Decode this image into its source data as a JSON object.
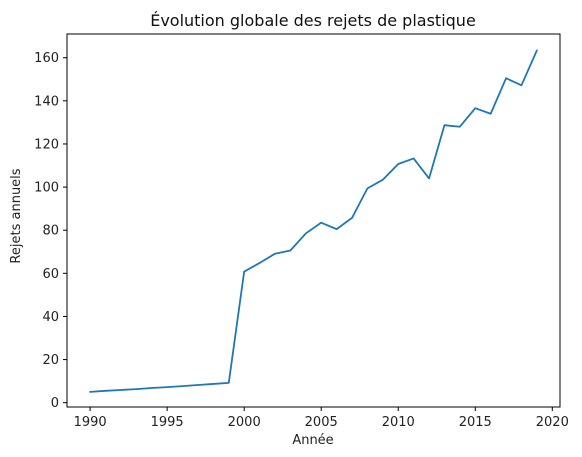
{
  "chart_data": {
    "type": "line",
    "title": "Évolution globale des rejets de plastique",
    "xlabel": "Année",
    "ylabel": "Rejets annuels",
    "xlim": [
      1988.5,
      2020.5
    ],
    "ylim": [
      -2,
      171
    ],
    "xticks": [
      1990,
      1995,
      2000,
      2005,
      2010,
      2015,
      2020
    ],
    "yticks": [
      0,
      20,
      40,
      60,
      80,
      100,
      120,
      140,
      160
    ],
    "grid": false,
    "legend": "none",
    "series": [
      {
        "color": "#1f77b4",
        "x": [
          1990,
          1991,
          1992,
          1993,
          1994,
          1995,
          1996,
          1997,
          1998,
          1999,
          2000,
          2001,
          2002,
          2003,
          2004,
          2005,
          2006,
          2007,
          2008,
          2009,
          2010,
          2011,
          2012,
          2013,
          2014,
          2015,
          2016,
          2017,
          2018,
          2019
        ],
        "y": [
          5.0,
          5.5,
          5.9,
          6.3,
          6.8,
          7.2,
          7.7,
          8.2,
          8.7,
          9.2,
          60.8,
          64.8,
          69.1,
          70.6,
          78.5,
          83.5,
          80.5,
          85.7,
          99.4,
          103.4,
          110.7,
          113.3,
          104.0,
          128.7,
          128.0,
          136.6,
          134.0,
          150.5,
          147.2,
          163.4
        ]
      }
    ]
  }
}
